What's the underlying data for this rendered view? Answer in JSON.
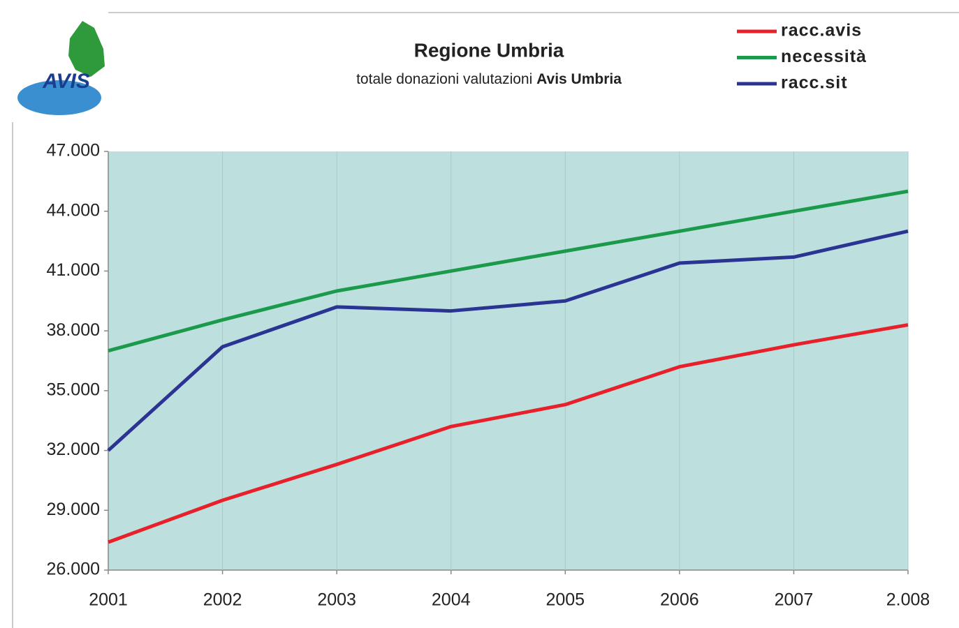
{
  "chart_data": {
    "type": "line",
    "title": "Regione Umbria",
    "subtitle_parts": [
      "totale donazioni valutazioni",
      "Avis Umbria"
    ],
    "logo_text": "AVIS",
    "categories": [
      "2001",
      "2002",
      "2003",
      "2004",
      "2005",
      "2006",
      "2007",
      "2.008"
    ],
    "series": [
      {
        "name": "racc.avis",
        "color": "#e8202a",
        "values": [
          27400,
          29500,
          31300,
          33200,
          34300,
          36200,
          37300,
          38300
        ]
      },
      {
        "name": "necessità",
        "color": "#1a9a4a",
        "values": [
          37000,
          38550,
          40000,
          41000,
          42000,
          43000,
          44000,
          45000
        ]
      },
      {
        "name": "racc.sit",
        "color": "#2b3393",
        "values": [
          32000,
          37200,
          39200,
          39000,
          39500,
          41400,
          41700,
          43000
        ]
      }
    ],
    "ylim": [
      26000,
      47000
    ],
    "yticks": [
      {
        "value": 26000,
        "label": "26.000"
      },
      {
        "value": 29000,
        "label": "29.000"
      },
      {
        "value": 32000,
        "label": "32.000"
      },
      {
        "value": 35000,
        "label": "35.000"
      },
      {
        "value": 38000,
        "label": "38.000"
      },
      {
        "value": 41000,
        "label": "41.000"
      },
      {
        "value": 44000,
        "label": "44.000"
      },
      {
        "value": 47000,
        "label": "47.000"
      }
    ],
    "grid": true,
    "legend": "top-right",
    "plot_color": "#bde0df"
  }
}
